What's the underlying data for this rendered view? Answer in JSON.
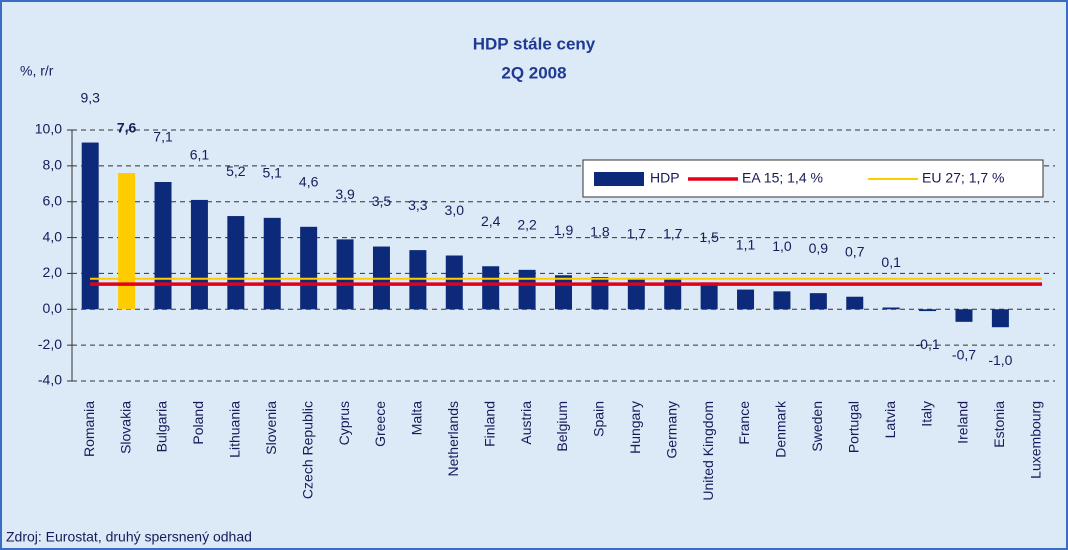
{
  "chart_data": {
    "type": "bar",
    "title": "HDP stále ceny",
    "subtitle": "2Q 2008",
    "y_axis_label": "%, r/r",
    "source": "Zdroj: Eurostat, druhý spersnený odhad",
    "categories": [
      "Romania",
      "Slovakia",
      "Bulgaria",
      "Poland",
      "Lithuania",
      "Slovenia",
      "Czech Republic",
      "Cyprus",
      "Greece",
      "Malta",
      "Netherlands",
      "Finland",
      "Austria",
      "Belgium",
      "Spain",
      "Hungary",
      "Germany",
      "United Kingdom",
      "France",
      "Denmark",
      "Sweden",
      "Portugal",
      "Latvia",
      "Italy",
      "Ireland",
      "Estonia",
      "Luxembourg"
    ],
    "series": [
      {
        "name": "HDP",
        "color": "#0d2a7a",
        "values": [
          9.3,
          7.6,
          7.1,
          6.1,
          5.2,
          5.1,
          4.6,
          3.9,
          3.5,
          3.3,
          3.0,
          2.4,
          2.2,
          1.9,
          1.8,
          1.7,
          1.7,
          1.5,
          1.1,
          1.0,
          0.9,
          0.7,
          0.1,
          -0.1,
          -0.7,
          -1.0,
          null
        ],
        "value_labels": [
          "9,3",
          "7,6",
          "7,1",
          "6,1",
          "5,2",
          "5,1",
          "4,6",
          "3,9",
          "3,5",
          "3,3",
          "3,0",
          "2,4",
          "2,2",
          "1,9",
          "1,8",
          "1,7",
          "1,7",
          "1,5",
          "1,1",
          "1,0",
          "0,9",
          "0,7",
          "0,1",
          "-0,1",
          "-0,7",
          "-1,0",
          null
        ],
        "colors": [
          "#0d2a7a",
          "#ffcc00",
          "#0d2a7a",
          "#0d2a7a",
          "#0d2a7a",
          "#0d2a7a",
          "#0d2a7a",
          "#0d2a7a",
          "#0d2a7a",
          "#0d2a7a",
          "#0d2a7a",
          "#0d2a7a",
          "#0d2a7a",
          "#0d2a7a",
          "#0d2a7a",
          "#0d2a7a",
          "#0d2a7a",
          "#0d2a7a",
          "#0d2a7a",
          "#0d2a7a",
          "#0d2a7a",
          "#0d2a7a",
          "#0d2a7a",
          "#0d2a7a",
          "#0d2a7a",
          "#0d2a7a",
          "#0d2a7a"
        ]
      }
    ],
    "reference_lines": [
      {
        "name": "EA 15; 1,4 %",
        "value": 1.4,
        "color": "#e3001b"
      },
      {
        "name": "EU 27; 1,7 %",
        "value": 1.7,
        "color": "#ffcc00"
      }
    ],
    "ylim": [
      -4,
      10
    ],
    "yticks": [
      {
        "value": -4,
        "label": "-4,0"
      },
      {
        "value": -2,
        "label": "-2,0"
      },
      {
        "value": 0,
        "label": "0,0"
      },
      {
        "value": 2,
        "label": "2,0"
      },
      {
        "value": 4,
        "label": "4,0"
      },
      {
        "value": 6,
        "label": "6,0"
      },
      {
        "value": 8,
        "label": "8,0"
      },
      {
        "value": 10,
        "label": "10,0"
      }
    ],
    "grid": true
  }
}
